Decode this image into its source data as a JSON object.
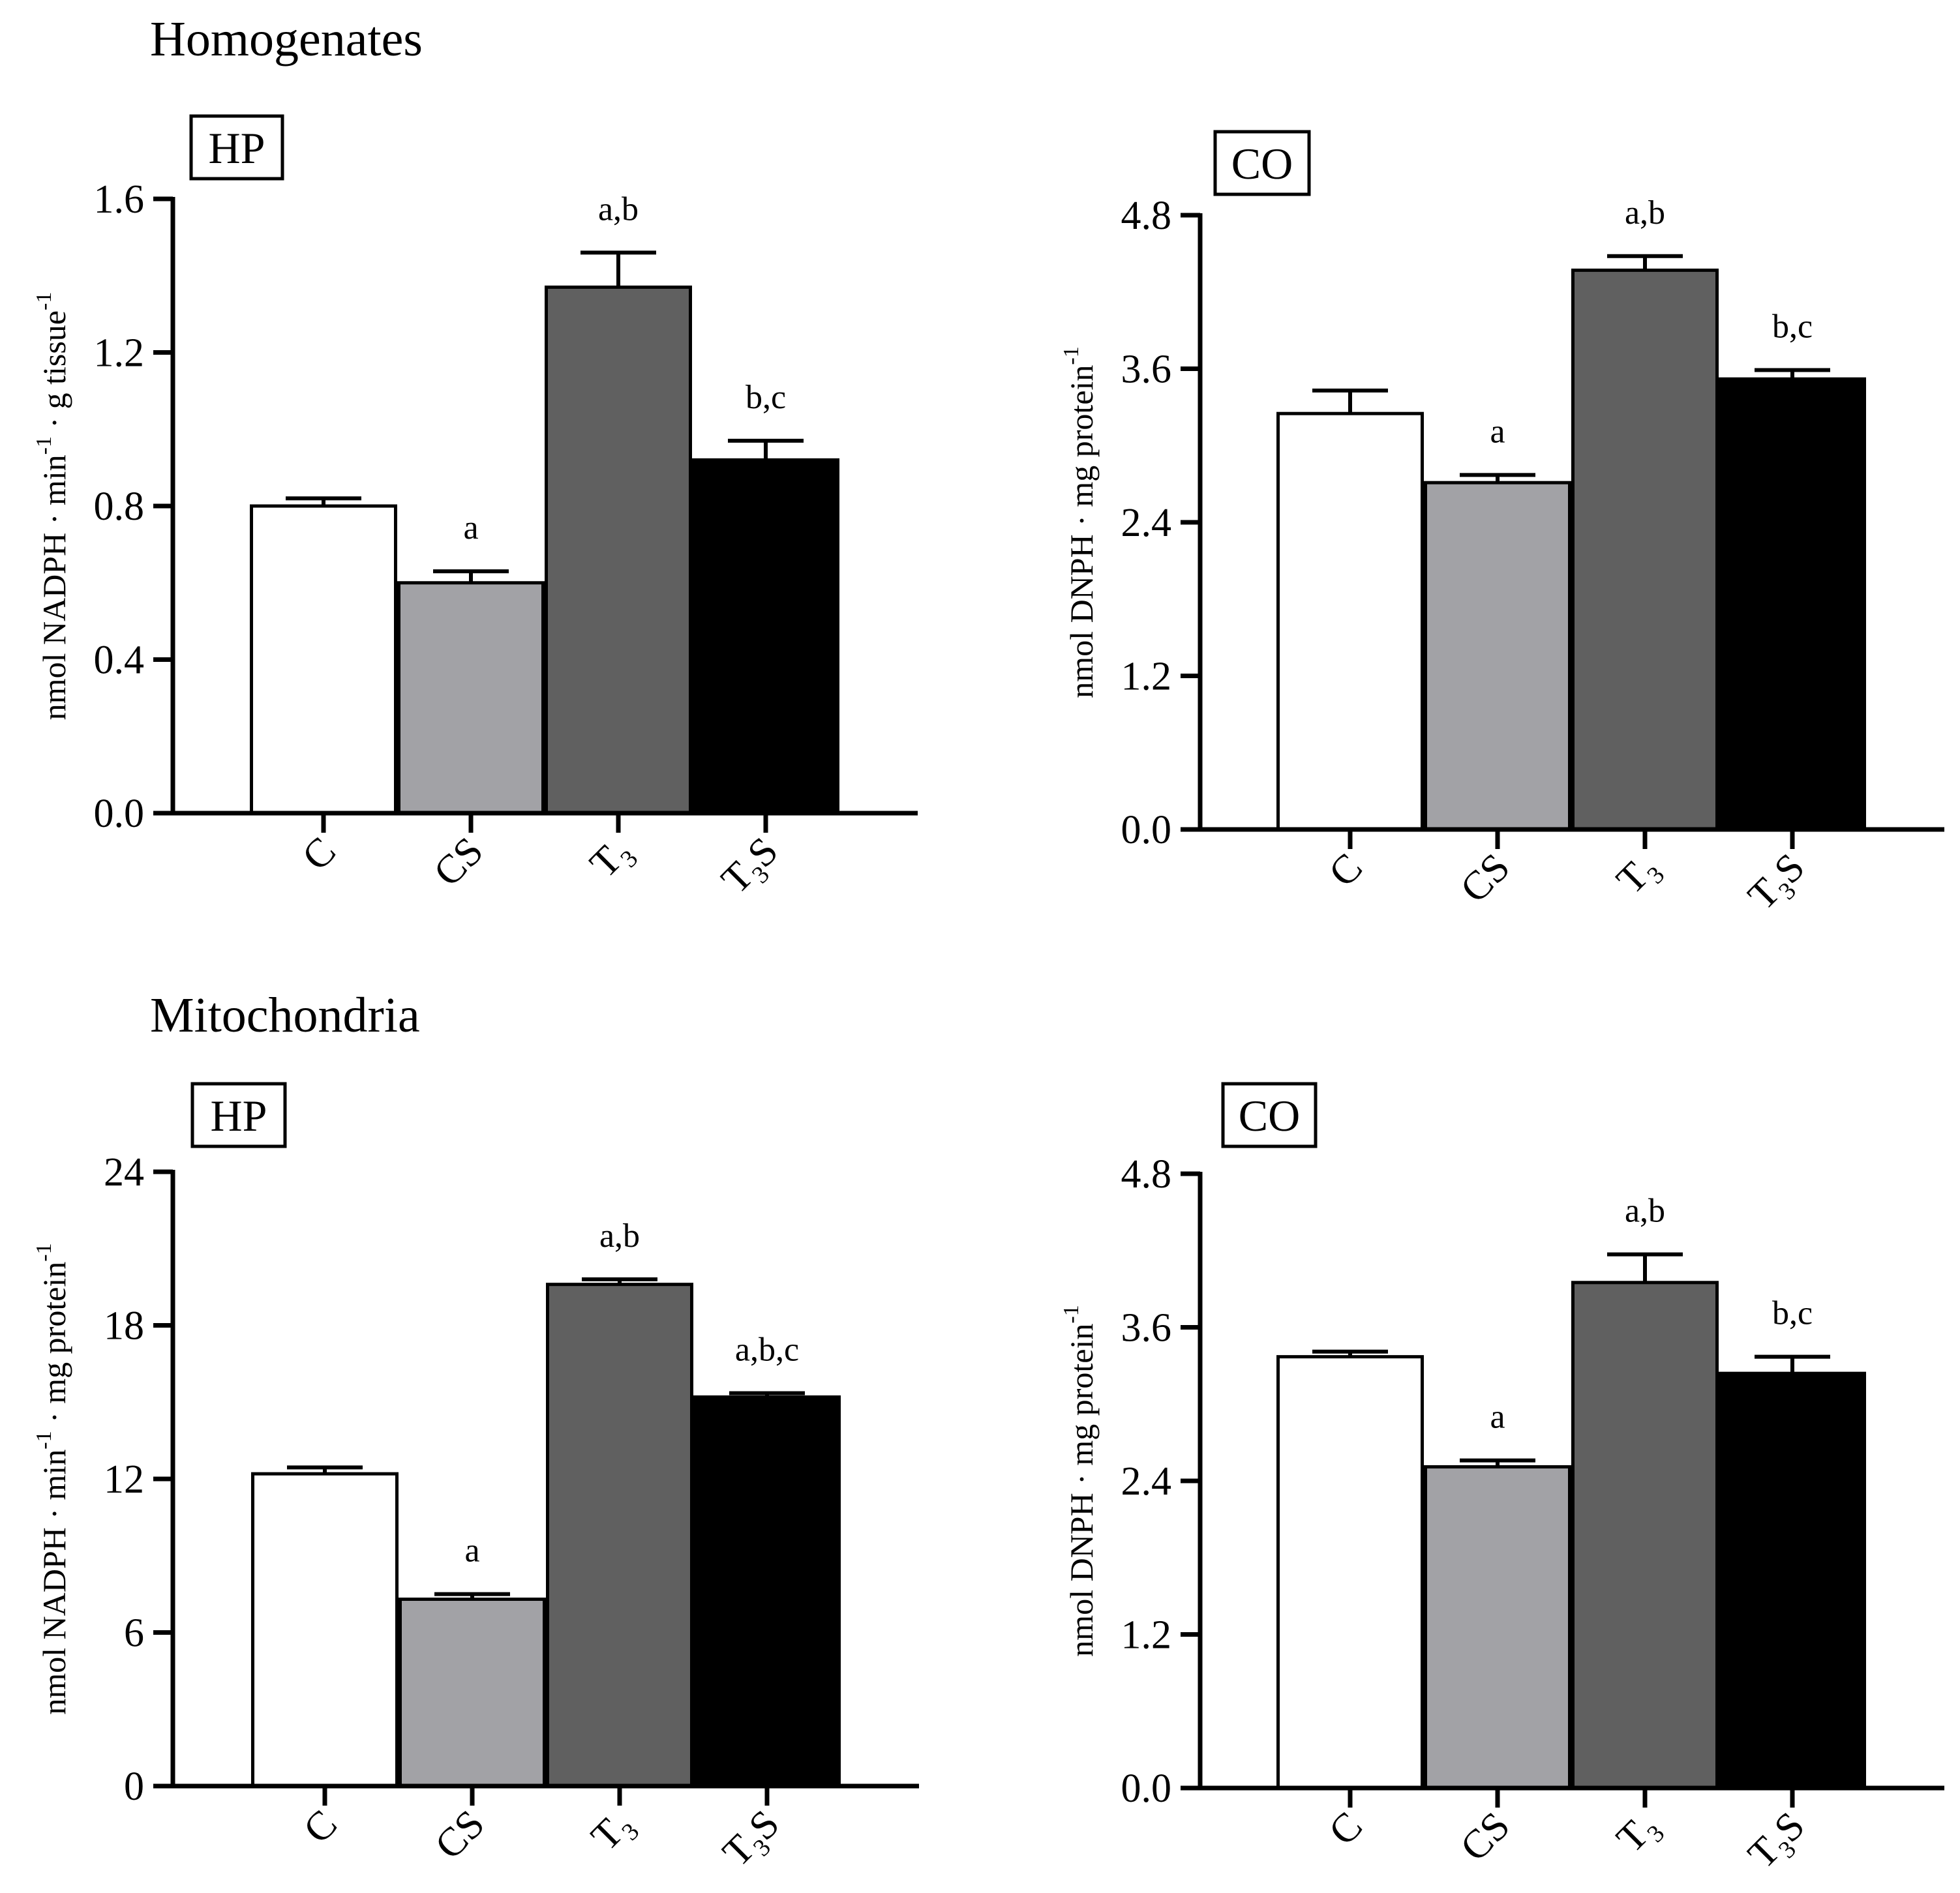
{
  "figure": {
    "sections": [
      {
        "title": "Homogenates"
      },
      {
        "title": "Mitochondria"
      }
    ]
  },
  "chart_data": [
    {
      "type": "bar",
      "section": "Homogenates",
      "panel_label": "HP",
      "categories": [
        "C",
        "CS",
        "T3",
        "T3S"
      ],
      "category_display": [
        {
          "base": "C"
        },
        {
          "base": "CS"
        },
        {
          "base": "T",
          "sub": "3"
        },
        {
          "base": "T",
          "sub": "3",
          "suffix": "S"
        }
      ],
      "values": [
        0.8,
        0.6,
        1.37,
        0.92
      ],
      "errors": [
        0.02,
        0.03,
        0.09,
        0.05
      ],
      "significance": [
        "",
        "a",
        "a,b",
        "b,c"
      ],
      "colors": [
        "#ffffff",
        "#a2a2a6",
        "#606060",
        "#000000"
      ],
      "ylabel": {
        "parts": [
          {
            "t": "nmol NADPH · min"
          },
          {
            "t": "-1",
            "sup": true
          },
          {
            "t": "· g tissue"
          },
          {
            "t": "-1",
            "sup": true
          }
        ]
      },
      "yticks": [
        "0.0",
        "0.4",
        "0.8",
        "1.2",
        "1.6"
      ],
      "ylim": [
        0,
        1.6
      ]
    },
    {
      "type": "bar",
      "section": "Homogenates",
      "panel_label": "CO",
      "categories": [
        "C",
        "CS",
        "T3",
        "T3S"
      ],
      "category_display": [
        {
          "base": "C"
        },
        {
          "base": "CS"
        },
        {
          "base": "T",
          "sub": "3"
        },
        {
          "base": "T",
          "sub": "3",
          "suffix": "S"
        }
      ],
      "values": [
        3.25,
        2.71,
        4.37,
        3.52
      ],
      "errors": [
        0.18,
        0.06,
        0.11,
        0.07
      ],
      "significance": [
        "",
        "a",
        "a,b",
        "b,c"
      ],
      "colors": [
        "#ffffff",
        "#a2a2a6",
        "#606060",
        "#000000"
      ],
      "ylabel": {
        "parts": [
          {
            "t": "nmol DNPH · mg protein"
          },
          {
            "t": "-1",
            "sup": true
          }
        ]
      },
      "yticks": [
        "0.0",
        "1.2",
        "2.4",
        "3.6",
        "4.8"
      ],
      "ylim": [
        0,
        4.8
      ]
    },
    {
      "type": "bar",
      "section": "Mitochondria",
      "panel_label": "HP",
      "categories": [
        "C",
        "CS",
        "T3",
        "T3S"
      ],
      "category_display": [
        {
          "base": "C"
        },
        {
          "base": "CS"
        },
        {
          "base": "T",
          "sub": "3"
        },
        {
          "base": "T",
          "sub": "3",
          "suffix": "S"
        }
      ],
      "values": [
        12.2,
        7.3,
        19.6,
        15.2
      ],
      "errors": [
        0.25,
        0.2,
        0.2,
        0.15
      ],
      "significance": [
        "",
        "a",
        "a,b",
        "a,b,c"
      ],
      "colors": [
        "#ffffff",
        "#a2a2a6",
        "#606060",
        "#000000"
      ],
      "ylabel": {
        "parts": [
          {
            "t": "nmol NADPH · min"
          },
          {
            "t": "-1",
            "sup": true
          },
          {
            "t": "· mg protein"
          },
          {
            "t": "-1",
            "sup": true
          }
        ]
      },
      "yticks": [
        "0",
        "6",
        "12",
        "18",
        "24"
      ],
      "ylim": [
        0,
        24
      ]
    },
    {
      "type": "bar",
      "section": "Mitochondria",
      "panel_label": "CO",
      "categories": [
        "C",
        "CS",
        "T3",
        "T3S"
      ],
      "category_display": [
        {
          "base": "C"
        },
        {
          "base": "CS"
        },
        {
          "base": "T",
          "sub": "3"
        },
        {
          "base": "T",
          "sub": "3",
          "suffix": "S"
        }
      ],
      "values": [
        3.37,
        2.51,
        3.95,
        3.24
      ],
      "errors": [
        0.04,
        0.05,
        0.22,
        0.13
      ],
      "significance": [
        "",
        "a",
        "a,b",
        "b,c"
      ],
      "colors": [
        "#ffffff",
        "#a2a2a6",
        "#606060",
        "#000000"
      ],
      "ylabel": {
        "parts": [
          {
            "t": "nmol DNPH · mg protein"
          },
          {
            "t": "-1",
            "sup": true
          }
        ]
      },
      "yticks": [
        "0.0",
        "1.2",
        "2.4",
        "3.6",
        "4.8"
      ],
      "ylim": [
        0,
        4.8
      ]
    }
  ]
}
